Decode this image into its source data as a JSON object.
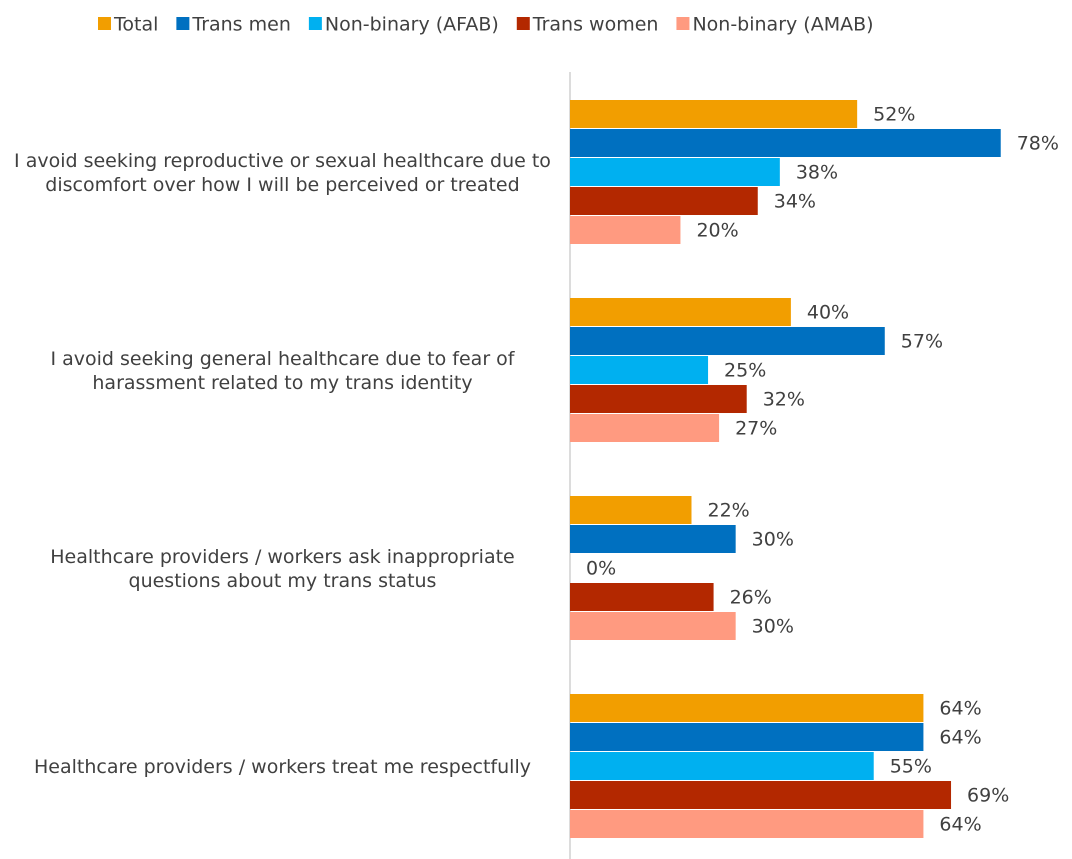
{
  "chart_data": {
    "type": "bar",
    "orientation": "horizontal",
    "categories": [
      "I avoid seeking reproductive or sexual healthcare due to discomfort over how I will be perceived or treated",
      "I avoid seeking general healthcare due to fear of harassment related to my trans identity",
      "Healthcare providers / workers ask inappropriate questions about my trans status",
      "Healthcare providers / workers treat me respectfully"
    ],
    "series": [
      {
        "name": "Total",
        "color": "#f29e00",
        "values": [
          52,
          40,
          22,
          64
        ],
        "value_labels": [
          "52%",
          "40%",
          "22%",
          "64%"
        ]
      },
      {
        "name": "Trans men",
        "color": "#0070c0",
        "values": [
          78,
          57,
          30,
          64
        ],
        "value_labels": [
          "78%",
          "57%",
          "30%",
          "64%"
        ]
      },
      {
        "name": "Non-binary (AFAB)",
        "color": "#00b0f0",
        "values": [
          38,
          25,
          0,
          55
        ],
        "value_labels": [
          "38%",
          "25%",
          "0%",
          "55%"
        ]
      },
      {
        "name": "Trans women",
        "color": "#b32800",
        "values": [
          34,
          32,
          26,
          69
        ],
        "value_labels": [
          "34%",
          "32%",
          "26%",
          "69%"
        ]
      },
      {
        "name": "Non-binary (AMAB)",
        "color": "#ff9a80",
        "values": [
          20,
          27,
          30,
          64
        ],
        "value_labels": [
          "20%",
          "27%",
          "30%",
          "64%"
        ]
      }
    ],
    "xlim": [
      0,
      90
    ],
    "legend": "top"
  }
}
